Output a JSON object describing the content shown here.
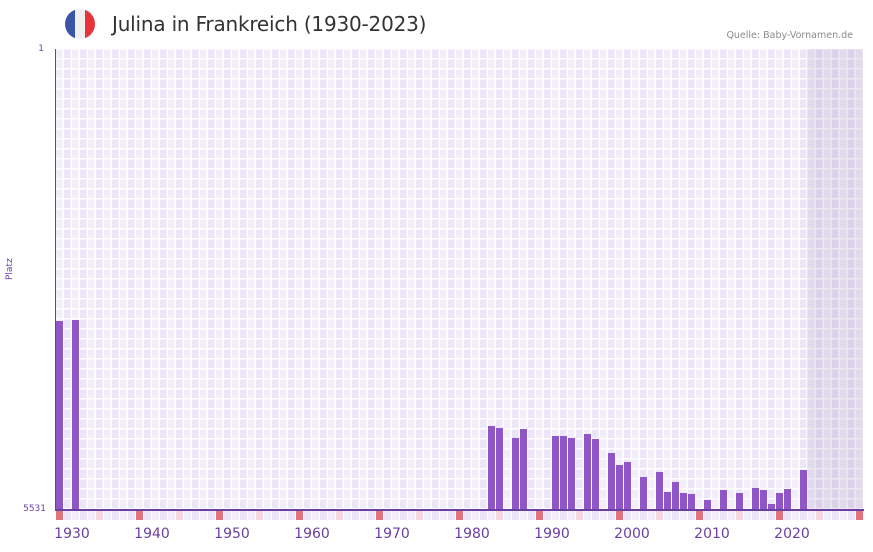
{
  "header": {
    "title": "Julina in Frankreich (1930-2023)",
    "source": "Quelle: Baby-Vornamen.de",
    "flag_icon": "france-flag-icon",
    "flag_colors": [
      "#3a54a8",
      "#f0f0f0",
      "#e8323c"
    ]
  },
  "colors": {
    "bar": "#8e56c7",
    "axis": "#6b3fa0",
    "grid_a": "#f2eefb",
    "grid_b": "#ebe5f7",
    "decade_tick": "#e0737c",
    "half_decade_tick": "#f5d6de",
    "future_shade": "#ddd6e8"
  },
  "chart_data": {
    "type": "bar",
    "title": "Julina in Frankreich (1930-2023)",
    "xlabel": "",
    "ylabel": "Platz",
    "y_axis_inverted": true,
    "ylim": [
      5531,
      1
    ],
    "y_ticks": [
      "1",
      "5531"
    ],
    "x_range": [
      1930,
      2030
    ],
    "x_ticks": [
      "1930",
      "1940",
      "1950",
      "1960",
      "1970",
      "1980",
      "1990",
      "2000",
      "2010",
      "2020"
    ],
    "future_shaded_from": 2024,
    "grid": true,
    "legend": null,
    "categories": [
      1930,
      1932,
      1984,
      1985,
      1987,
      1988,
      1992,
      1993,
      1994,
      1996,
      1997,
      1999,
      2000,
      2001,
      2003,
      2005,
      2006,
      2007,
      2008,
      2009,
      2011,
      2013,
      2015,
      2017,
      2018,
      2019,
      2020,
      2021,
      2023
    ],
    "values": [
      3271,
      3259,
      4533,
      4557,
      4678,
      4569,
      4654,
      4654,
      4678,
      4630,
      4690,
      4858,
      5002,
      4966,
      5146,
      5086,
      5327,
      5206,
      5339,
      5351,
      5423,
      5303,
      5339,
      5279,
      5303,
      5471,
      5339,
      5291,
      5062
    ],
    "series": [
      {
        "name": "Platz",
        "values": [
          3271,
          3259,
          4533,
          4557,
          4678,
          4569,
          4654,
          4654,
          4678,
          4630,
          4690,
          4858,
          5002,
          4966,
          5146,
          5086,
          5327,
          5206,
          5339,
          5351,
          5423,
          5303,
          5339,
          5279,
          5303,
          5471,
          5339,
          5291,
          5062
        ]
      }
    ]
  },
  "axis": {
    "ylabel": "Platz",
    "ytop": "1",
    "ybottom": "5531"
  }
}
